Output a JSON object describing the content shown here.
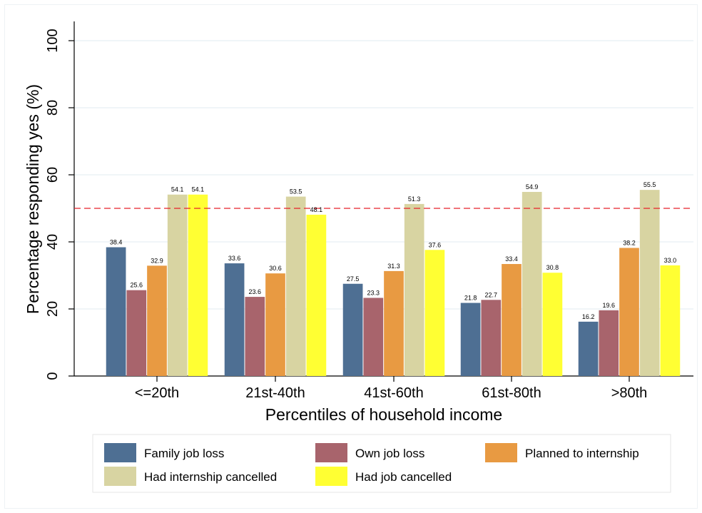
{
  "chart_data": {
    "type": "bar",
    "categories": [
      "<=20th",
      "21st-40th",
      "41st-60th",
      "61st-80th",
      ">80th"
    ],
    "series": [
      {
        "name": "Family job loss",
        "color": "#4e6f93",
        "values": [
          38.4,
          33.6,
          27.5,
          21.8,
          16.2
        ],
        "labels": [
          "38.4",
          "33.6",
          "27.5",
          "21.8",
          "16.2"
        ]
      },
      {
        "name": "Own job loss",
        "color": "#a8646c",
        "values": [
          25.6,
          23.6,
          23.3,
          22.7,
          19.6
        ],
        "labels": [
          "25.6",
          "23.6",
          "23.3",
          "22.7",
          "19.6"
        ]
      },
      {
        "name": "Planned to internship",
        "color": "#e89a42",
        "values": [
          32.9,
          30.6,
          31.3,
          33.4,
          38.2
        ],
        "labels": [
          "32.9",
          "30.6",
          "31.3",
          "33.4",
          "38.2"
        ]
      },
      {
        "name": "Had internship cancelled",
        "color": "#d8d4a2",
        "values": [
          54.1,
          53.5,
          51.3,
          54.9,
          55.5
        ],
        "labels": [
          "54.1",
          "53.5",
          "51.3",
          "54.9",
          "55.5"
        ]
      },
      {
        "name": "Had job cancelled",
        "color": "#ffff33",
        "values": [
          54.1,
          48.1,
          37.6,
          30.8,
          33.0
        ],
        "labels": [
          "54.1",
          "48.1",
          "37.6",
          "30.8",
          "33.0"
        ]
      }
    ],
    "xlabel": "Percentiles of household income",
    "ylabel": "Percentage responding yes (%)",
    "ylim": [
      0,
      100
    ],
    "yticks": [
      0,
      20,
      40,
      60,
      80,
      100
    ],
    "ytick_labels": [
      "0",
      "20",
      "40",
      "60",
      "80",
      "100"
    ],
    "reference_line": {
      "value": 50,
      "color": "#e8212a",
      "style": "dashed"
    },
    "grid": true,
    "legend_position": "bottom"
  }
}
